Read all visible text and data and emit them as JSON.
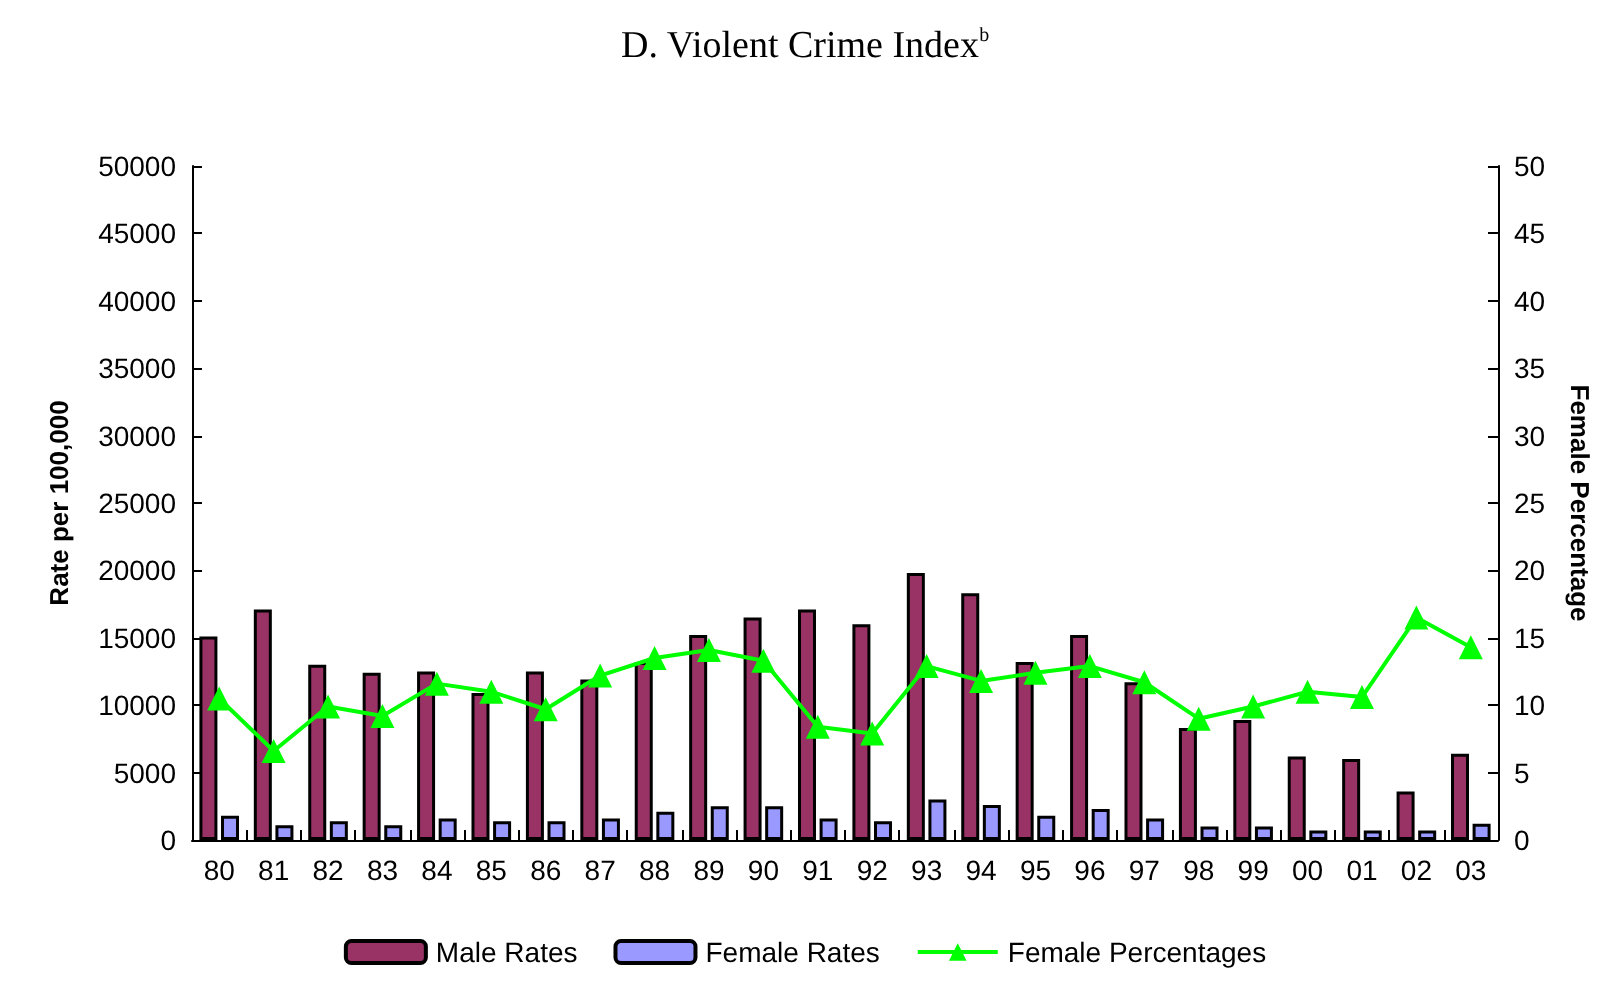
{
  "chart_data": {
    "type": "bar",
    "title": "D. Violent Crime Index$^{b}$",
    "ylabel": "Rate per 100,000",
    "y2label": "Female Percentage",
    "categories": [
      "80",
      "81",
      "82",
      "83",
      "84",
      "85",
      "86",
      "87",
      "88",
      "89",
      "90",
      "91",
      "92",
      "93",
      "94",
      "95",
      "96",
      "97",
      "98",
      "99",
      "00",
      "01",
      "02",
      "03"
    ],
    "series": [
      {
        "name": "Male Rates",
        "color": "#993366",
        "values": [
          15100,
          17100,
          13000,
          12400,
          12500,
          10900,
          12500,
          11900,
          13200,
          15200,
          16500,
          17100,
          16000,
          19800,
          18300,
          13200,
          15200,
          11700,
          8300,
          8900,
          6200,
          6000,
          3600,
          6400
        ]
      },
      {
        "name": "Female Rates",
        "color": "#9999ff",
        "values": [
          1800,
          1100,
          1400,
          1100,
          1600,
          1400,
          1400,
          1600,
          2100,
          2500,
          2500,
          1600,
          1400,
          3000,
          2600,
          1800,
          2300,
          1600,
          1000,
          1000,
          700,
          700,
          700,
          1200
        ]
      },
      {
        "name": "Female Percentages",
        "type": "line",
        "axis": "y2",
        "color": "#00ff00",
        "marker": "triangle",
        "values": [
          10.5,
          6.6,
          9.9,
          9.2,
          11.6,
          11.0,
          9.7,
          12.2,
          13.5,
          14.1,
          13.3,
          8.4,
          7.9,
          12.9,
          11.8,
          12.4,
          12.9,
          11.7,
          9.0,
          9.9,
          11.0,
          10.6,
          16.5,
          14.3
        ]
      }
    ],
    "ylim": [
      0,
      50000
    ],
    "yticks": [
      0,
      5000,
      10000,
      15000,
      20000,
      25000,
      30000,
      35000,
      40000,
      45000,
      50000
    ],
    "y2lim": [
      0,
      50
    ],
    "y2ticks": [
      0,
      5,
      10,
      15,
      20,
      25,
      30,
      35,
      40,
      45,
      50
    ],
    "legend": "bottom",
    "grid": false
  }
}
